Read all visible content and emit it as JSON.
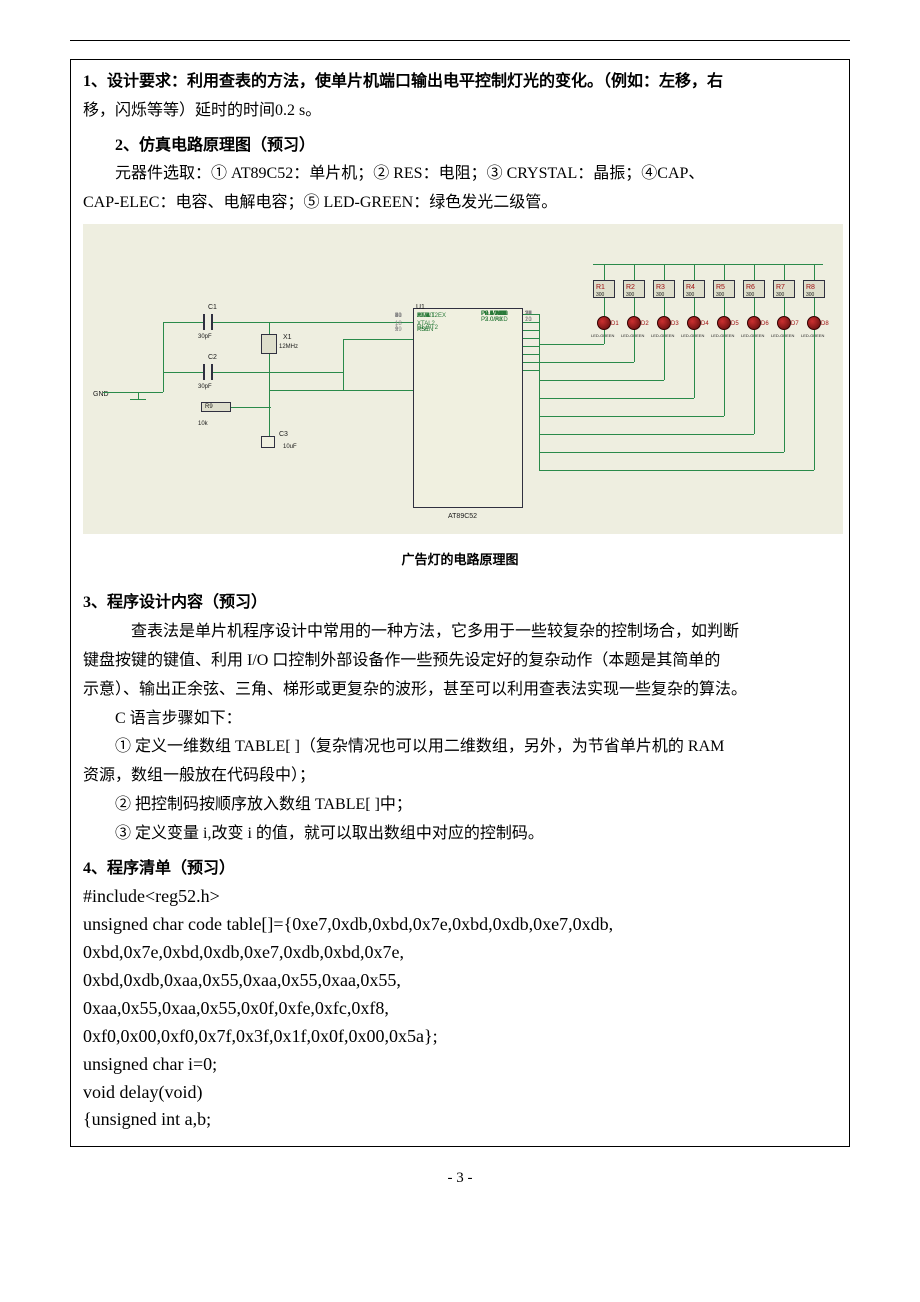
{
  "doc": {
    "p1a": "1、设计要求：利用查表的方法，使单片机端口输出电平控制灯光的变化。（例如：左移，右",
    "p1b": "移，闪烁等等）延时的时间0.2 s。",
    "h2": "2、仿真电路原理图（预习）",
    "p2a": "元器件选取：① AT89C52：单片机；② RES：电阻；③ CRYSTAL：晶振；④CAP、",
    "p2b": "CAP-ELEC：电容、电解电容；⑤ LED-GREEN：绿色发光二级管。",
    "figcap": "广告灯的电路原理图",
    "h3": "3、程序设计内容（预习）",
    "p3a": "查表法是单片机程序设计中常用的一种方法，它多用于一些较复杂的控制场合，如判断",
    "p3b": "键盘按键的键值、利用 I/O 口控制外部设备作一些预先设定好的复杂动作（本题是其简单的",
    "p3c": "示意）、输出正余弦、三角、梯形或更复杂的波形，甚至可以利用查表法实现一些复杂的算法。",
    "p3d": "C 语言步骤如下：",
    "p3e": "① 定义一维数组 TABLE[ ]（复杂情况也可以用二维数组，另外，为节省单片机的 RAM",
    "p3f": "资源，数组一般放在代码段中）；",
    "p3g": "② 把控制码按顺序放入数组 TABLE[ ]中；",
    "p3h": "③ 定义变量 i,改变 i 的值，就可以取出数组中对应的控制码。",
    "h4": "4、程序清单（预习）",
    "c0": "#include<reg52.h>",
    "c1": "  unsigned char code table[]={0xe7,0xdb,0xbd,0x7e,0xbd,0xdb,0xe7,0xdb,",
    "c2": "0xbd,0x7e,0xbd,0xdb,0xe7,0xdb,0xbd,0x7e,",
    "c3": "0xbd,0xdb,0xaa,0x55,0xaa,0x55,0xaa,0x55,",
    "c4": "0xaa,0x55,0xaa,0x55,0x0f,0xfe,0xfc,0xf8,",
    "c5": "0xf0,0x00,0xf0,0x7f,0x3f,0x1f,0x0f,0x00,0x5a};",
    "c6": "unsigned char i=0;",
    "c7": "void delay(void)",
    "c8": "{unsigned int a,b;",
    "pagenum": "- 3 -"
  },
  "schematic": {
    "osc": {
      "c1": "C1",
      "c2": "C2",
      "c3": "C3",
      "c1v": "30pF",
      "c2v": "30pF",
      "c3v": "10uF",
      "x1": "X1",
      "x1v": "12MHz",
      "r9": "R9",
      "r9v": "10k",
      "gnd": "GND"
    },
    "chip": {
      "name": "AT89C52",
      "u1": "U1",
      "left": [
        "XTAL1",
        "XTAL2",
        "",
        "RST",
        "",
        "PSEN",
        "ALE",
        "EA",
        "",
        "P1.0/T2",
        "P1.1/T2EX",
        "P1.2",
        "P1.3",
        "P1.4",
        "P1.5",
        "P1.6",
        "P1.7"
      ],
      "leftpin": [
        "19",
        "18",
        "",
        "9",
        "",
        "29",
        "30",
        "31",
        "",
        "1",
        "2",
        "3",
        "4",
        "5",
        "6",
        "7",
        "8"
      ],
      "right": [
        "P0.0/AD0",
        "P0.1/AD1",
        "P0.2/AD2",
        "P0.3/AD3",
        "P0.4/AD4",
        "P0.5/AD5",
        "P0.6/AD6",
        "P0.7/AD7",
        "",
        "P2.0/A8",
        "P2.1/A9",
        "P2.2/A10",
        "P2.3/A11",
        "P2.4/A12",
        "P2.5/A13",
        "P2.6/A14",
        "P2.7/A15",
        "",
        "P3.0/RXD",
        "P3.1/TXD",
        "P3.2/INT0",
        "P3.3/INT1",
        "P3.4/T0",
        "P3.5/T1",
        "P3.6/WR",
        "P3.7/RD"
      ],
      "rightpin": [
        "39",
        "38",
        "37",
        "36",
        "35",
        "34",
        "33",
        "32",
        "",
        "21",
        "22",
        "23",
        "24",
        "25",
        "26",
        "27",
        "28",
        "",
        "10",
        "11",
        "12",
        "13",
        "14",
        "15",
        "16",
        "17"
      ]
    },
    "resistors": [
      {
        "name": "R1",
        "val": "300"
      },
      {
        "name": "R2",
        "val": "300"
      },
      {
        "name": "R3",
        "val": "300"
      },
      {
        "name": "R4",
        "val": "300"
      },
      {
        "name": "R5",
        "val": "300"
      },
      {
        "name": "R6",
        "val": "300"
      },
      {
        "name": "R7",
        "val": "300"
      },
      {
        "name": "R8",
        "val": "300"
      }
    ],
    "leds": [
      "D1",
      "D2",
      "D3",
      "D4",
      "D5",
      "D6",
      "D7",
      "D8"
    ],
    "ledtype": "LED-GREEN",
    "colors": {
      "bg": "#eeeee0",
      "wire": "#2a8a4a",
      "label_red": "#a01010",
      "box_fill": "#dedecc"
    }
  }
}
